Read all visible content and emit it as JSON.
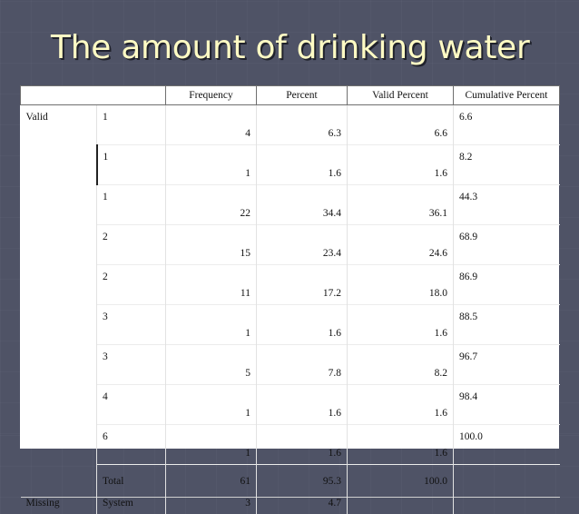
{
  "title": "The amount of drinking water",
  "columns": [
    "Frequency",
    "Percent",
    "Valid Percent",
    "Cumulative Percent"
  ],
  "rows": [
    {
      "group": "Valid",
      "value": "1",
      "frequency": "4",
      "percent": "6.3",
      "valid_percent": "6.6",
      "cumulative": "6.6"
    },
    {
      "group": "",
      "value": "1",
      "frequency": "1",
      "percent": "1.6",
      "valid_percent": "1.6",
      "cumulative": "8.2"
    },
    {
      "group": "",
      "value": "1",
      "frequency": "22",
      "percent": "34.4",
      "valid_percent": "36.1",
      "cumulative": "44.3"
    },
    {
      "group": "",
      "value": "2",
      "frequency": "15",
      "percent": "23.4",
      "valid_percent": "24.6",
      "cumulative": "68.9"
    },
    {
      "group": "",
      "value": "2",
      "frequency": "11",
      "percent": "17.2",
      "valid_percent": "18.0",
      "cumulative": "86.9"
    },
    {
      "group": "",
      "value": "3",
      "frequency": "1",
      "percent": "1.6",
      "valid_percent": "1.6",
      "cumulative": "88.5"
    },
    {
      "group": "",
      "value": "3",
      "frequency": "5",
      "percent": "7.8",
      "valid_percent": "8.2",
      "cumulative": "96.7"
    },
    {
      "group": "",
      "value": "4",
      "frequency": "1",
      "percent": "1.6",
      "valid_percent": "1.6",
      "cumulative": "98.4"
    },
    {
      "group": "",
      "value": "6",
      "frequency": "1",
      "percent": "1.6",
      "valid_percent": "1.6",
      "cumulative": "100.0"
    }
  ],
  "total": {
    "label": "Total",
    "frequency": "61",
    "percent": "95.3",
    "valid_percent": "100.0",
    "cumulative": ""
  },
  "missing": {
    "group": "Missing",
    "label": "System",
    "frequency": "3",
    "percent": "4.7"
  },
  "colors": {
    "background": "#4f5366",
    "title": "#fffbc4"
  }
}
